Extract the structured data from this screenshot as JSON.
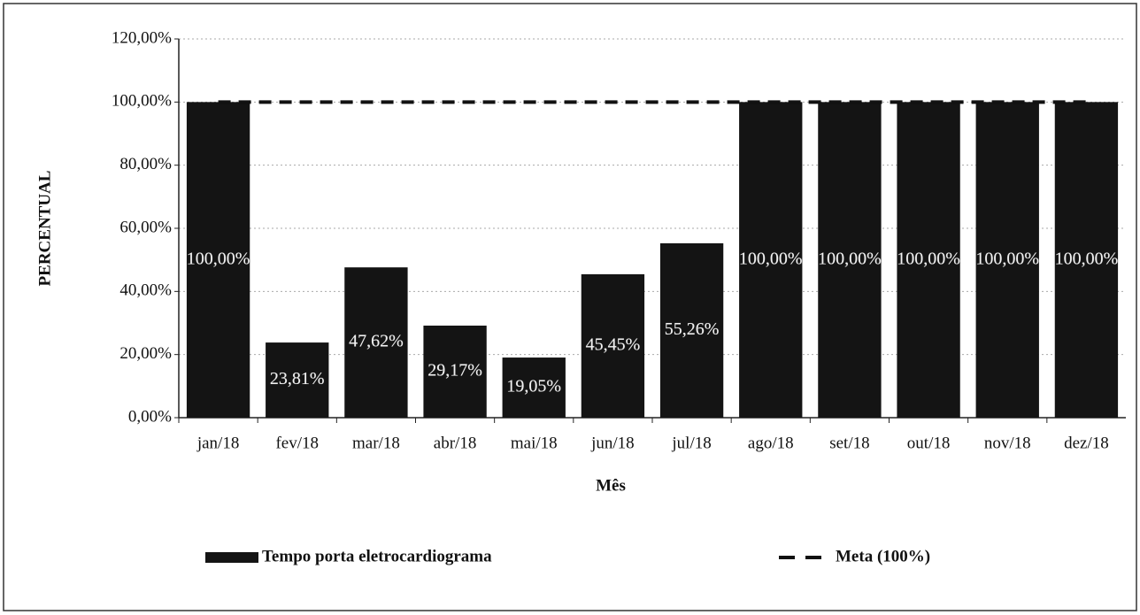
{
  "chart_data": {
    "type": "bar",
    "y_label": "PERCENTUAL",
    "x_label": "Mês",
    "categories": [
      "jan/18",
      "fev/18",
      "mar/18",
      "abr/18",
      "mai/18",
      "jun/18",
      "jul/18",
      "ago/18",
      "set/18",
      "out/18",
      "nov/18",
      "dez/18"
    ],
    "series": [
      {
        "name": "Tempo porta eletrocardiograma",
        "type": "bar",
        "color": "#141414",
        "values": [
          100,
          23.81,
          47.62,
          29.17,
          19.05,
          45.45,
          55.26,
          100,
          100,
          100,
          100,
          100
        ],
        "value_labels": [
          "100,00%",
          "23,81%",
          "47,62%",
          "29,17%",
          "19,05%",
          "45,45%",
          "55,26%",
          "100,00%",
          "100,00%",
          "100,00%",
          "100,00%",
          "100,00%"
        ]
      },
      {
        "name": "Meta (100%)",
        "type": "line",
        "color": "#111111",
        "dashed": true,
        "values": [
          100,
          100,
          100,
          100,
          100,
          100,
          100,
          100,
          100,
          100,
          100,
          100
        ]
      }
    ],
    "ylim": [
      0,
      120
    ],
    "yticks": [
      {
        "value": 0,
        "label": "0,00%"
      },
      {
        "value": 20,
        "label": "20,00%"
      },
      {
        "value": 40,
        "label": "40,00%"
      },
      {
        "value": 60,
        "label": "60,00%"
      },
      {
        "value": 80,
        "label": "80,00%"
      },
      {
        "value": 100,
        "label": "100,00%"
      },
      {
        "value": 120,
        "label": "120,00%"
      }
    ],
    "grid": true,
    "legend": "bottom"
  }
}
